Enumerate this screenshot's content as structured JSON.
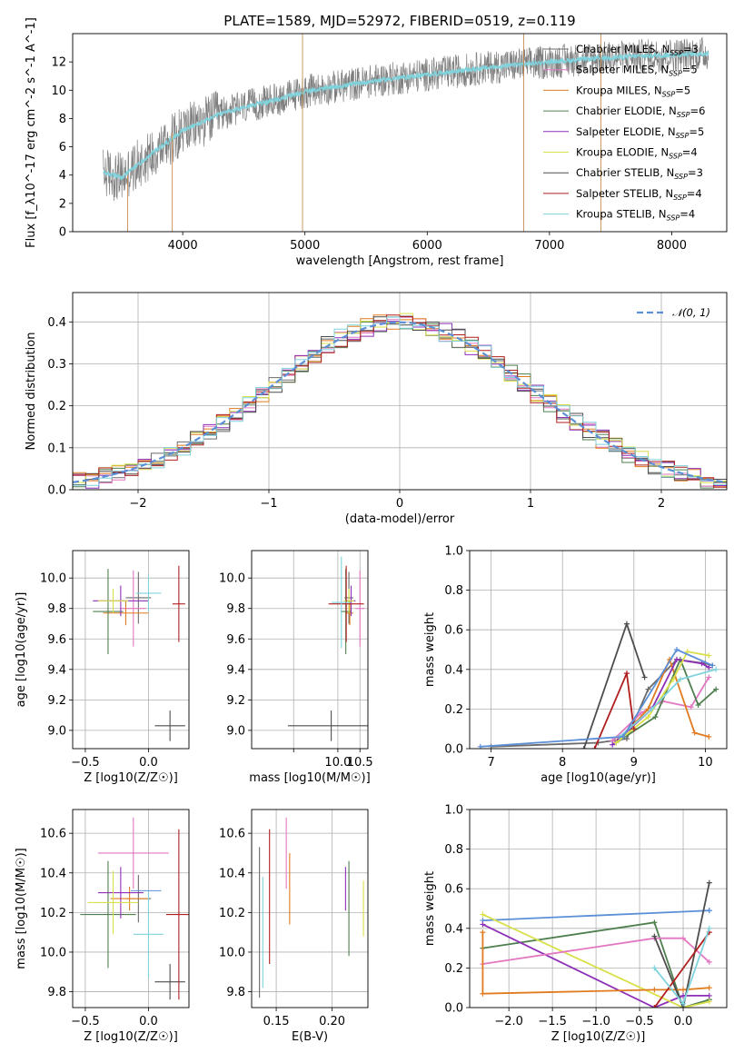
{
  "title": "PLATE=1589, MJD=52972, FIBERID=0519, z=0.119",
  "colors": {
    "Chabrier MILES": "#6b6b6b",
    "Salpeter MILES": "#e377c2",
    "Kroupa MILES": "#e07b1f",
    "Chabrier ELODIE": "#4f7f4f",
    "Salpeter ELODIE": "#8e2fb8",
    "Kroupa ELODIE": "#d9e04a",
    "Chabrier STELIB": "#4d4d4d",
    "Salpeter STELIB": "#b01e1e",
    "Kroupa STELIB": "#7fd3dd",
    "normal_curve": "#5b8fd6"
  },
  "legend_entries": [
    {
      "name": "Chabrier MILES",
      "nssp": "3"
    },
    {
      "name": "Salpeter MILES",
      "nssp": "5"
    },
    {
      "name": "Kroupa MILES",
      "nssp": "5"
    },
    {
      "name": "Chabrier ELODIE",
      "nssp": "6"
    },
    {
      "name": "Salpeter ELODIE",
      "nssp": "5"
    },
    {
      "name": "Kroupa ELODIE",
      "nssp": "4"
    },
    {
      "name": "Chabrier STELIB",
      "nssp": "3"
    },
    {
      "name": "Salpeter STELIB",
      "nssp": "4"
    },
    {
      "name": "Kroupa STELIB",
      "nssp": "4"
    }
  ],
  "chart_data": [
    {
      "id": "spectrum",
      "type": "line",
      "xlabel": "wavelength [Angstrom, rest frame]",
      "ylabel": "Flux [f_λ10^-17 erg cm^-2 s^-1 A^-1]",
      "xlim": [
        3100,
        8450
      ],
      "ylim": [
        0,
        14
      ],
      "xticks": [
        4000,
        5000,
        6000,
        7000,
        8000
      ],
      "yticks": [
        0,
        2,
        4,
        6,
        8,
        10,
        12
      ],
      "grid": false,
      "legend": "top-right",
      "data_envelope": {
        "x": [
          3350,
          3500,
          3700,
          3900,
          4000,
          4100,
          4300,
          4500,
          4800,
          5000,
          5300,
          5600,
          6000,
          6500,
          7000,
          7300,
          7500,
          7700,
          8000,
          8300
        ],
        "y": [
          4.2,
          3.8,
          5.2,
          6.5,
          7.2,
          7.5,
          8.3,
          8.8,
          9.4,
          9.9,
          10.3,
          10.7,
          11.1,
          11.6,
          12.0,
          12.2,
          12.3,
          12.4,
          12.5,
          12.6
        ]
      }
    },
    {
      "id": "residuals",
      "type": "line",
      "xlabel": "(data-model)/error",
      "ylabel": "Normed distribution",
      "xlim": [
        -2.5,
        2.5
      ],
      "ylim": [
        0,
        0.47
      ],
      "xticks": [
        -2,
        -1,
        0,
        1,
        2
      ],
      "yticks": [
        0.0,
        0.1,
        0.2,
        0.3,
        0.4
      ],
      "grid": true,
      "legend": "top-right",
      "normal_label": "𝒩(0, 1)",
      "hist_bin_width": 0.1
    },
    {
      "id": "age_vs_Z",
      "type": "scatter",
      "xlabel": "Z [log10(Z/Z☉)]",
      "ylabel": "age  [log10(age/yr)]",
      "xlim": [
        -0.6,
        0.32
      ],
      "ylim": [
        8.88,
        10.18
      ],
      "xticks": [
        -0.5,
        0.0
      ],
      "yticks": [
        9.0,
        9.2,
        9.4,
        9.6,
        9.8,
        10.0
      ],
      "grid": true,
      "points": [
        {
          "series": "Chabrier MILES",
          "x": -0.08,
          "y": 9.87,
          "xerr": 0.1,
          "yerr": 0.17
        },
        {
          "series": "Salpeter MILES",
          "x": -0.12,
          "y": 9.8,
          "xerr": 0.1,
          "yerr": 0.25
        },
        {
          "series": "Kroupa MILES",
          "x": -0.18,
          "y": 9.77,
          "xerr": 0.18,
          "yerr": 0.08
        },
        {
          "series": "Chabrier ELODIE",
          "x": -0.32,
          "y": 9.78,
          "xerr": 0.12,
          "yerr": 0.28
        },
        {
          "series": "Salpeter ELODIE",
          "x": -0.22,
          "y": 9.85,
          "xerr": 0.22,
          "yerr": 0.1
        },
        {
          "series": "Kroupa ELODIE",
          "x": -0.28,
          "y": 9.85,
          "xerr": 0.12,
          "yerr": 0.08
        },
        {
          "series": "Chabrier STELIB",
          "x": 0.17,
          "y": 9.03,
          "xerr": 0.12,
          "yerr": 0.1
        },
        {
          "series": "Salpeter STELIB",
          "x": 0.24,
          "y": 9.83,
          "xerr": 0.05,
          "yerr": 0.25
        },
        {
          "series": "Kroupa STELIB",
          "x": 0.0,
          "y": 9.9,
          "xerr": 0.1,
          "yerr": 0.12
        }
      ]
    },
    {
      "id": "age_vs_mass",
      "type": "scatter",
      "xlabel": "mass [log10(M/M☉)]",
      "ylabel": "",
      "xlim": [
        8.05,
        10.68
      ],
      "ylim": [
        8.88,
        10.18
      ],
      "xticks": [
        9.0,
        10.0,
        10.5
      ],
      "xtick_labels": [
        "",
        "10.0",
        "10.5"
      ],
      "yticks": [
        9.0,
        9.2,
        9.4,
        9.6,
        9.8,
        10.0
      ],
      "grid": true,
      "points": [
        {
          "series": "Chabrier MILES",
          "x": 10.25,
          "y": 9.87,
          "xerr": 0.1,
          "yerr": 0.17
        },
        {
          "series": "Salpeter MILES",
          "x": 10.5,
          "y": 9.8,
          "xerr": 0.1,
          "yerr": 0.25
        },
        {
          "series": "Kroupa MILES",
          "x": 10.27,
          "y": 9.77,
          "xerr": 0.08,
          "yerr": 0.08
        },
        {
          "series": "Chabrier ELODIE",
          "x": 10.18,
          "y": 9.78,
          "xerr": 0.12,
          "yerr": 0.28
        },
        {
          "series": "Salpeter ELODIE",
          "x": 10.3,
          "y": 9.85,
          "xerr": 0.1,
          "yerr": 0.1
        },
        {
          "series": "Kroupa ELODIE",
          "x": 10.25,
          "y": 9.85,
          "xerr": 0.12,
          "yerr": 0.08
        },
        {
          "series": "Chabrier STELIB",
          "x": 9.85,
          "y": 9.03,
          "xerr": 0.98,
          "yerr": 0.1
        },
        {
          "series": "Salpeter STELIB",
          "x": 10.19,
          "y": 9.83,
          "xerr": 0.4,
          "yerr": 0.25
        },
        {
          "series": "Kroupa STELIB",
          "x": 10.08,
          "y": 9.84,
          "xerr": 0.22,
          "yerr": 0.3
        }
      ]
    },
    {
      "id": "weight_vs_age",
      "type": "line",
      "xlabel": "age  [log10(age/yr)]",
      "ylabel": "mass weight",
      "xlim": [
        6.7,
        10.3
      ],
      "ylim": [
        0,
        1
      ],
      "xticks": [
        7,
        8,
        9,
        10
      ],
      "yticks": [
        0.0,
        0.2,
        0.4,
        0.6,
        0.8,
        1.0
      ],
      "grid": true,
      "series": [
        {
          "name": "Chabrier MILES",
          "x": [
            7.0,
            8.5,
            8.9,
            9.2,
            9.6,
            10.0,
            10.1
          ],
          "y": [
            0.01,
            0.03,
            0.05,
            0.3,
            0.45,
            0.43,
            0.42
          ]
        },
        {
          "name": "Salpeter MILES",
          "x": [
            8.7,
            9.1,
            9.4,
            9.8,
            10.05
          ],
          "y": [
            0.04,
            0.18,
            0.24,
            0.21,
            0.36
          ]
        },
        {
          "name": "Kroupa MILES",
          "x": [
            8.8,
            9.2,
            9.5,
            9.85,
            10.05
          ],
          "y": [
            0.05,
            0.2,
            0.45,
            0.08,
            0.06
          ]
        },
        {
          "name": "Chabrier ELODIE",
          "x": [
            8.75,
            9.3,
            9.65,
            9.9,
            10.15
          ],
          "y": [
            0.03,
            0.16,
            0.45,
            0.22,
            0.3
          ]
        },
        {
          "name": "Salpeter ELODIE",
          "x": [
            8.7,
            9.25,
            9.6,
            9.95,
            10.05
          ],
          "y": [
            0.02,
            0.2,
            0.45,
            0.43,
            0.41
          ]
        },
        {
          "name": "Kroupa ELODIE",
          "x": [
            8.75,
            9.2,
            9.55,
            9.75,
            10.05
          ],
          "y": [
            0.03,
            0.16,
            0.35,
            0.49,
            0.47
          ]
        },
        {
          "name": "Chabrier STELIB",
          "x": [
            8.3,
            8.9,
            9.15
          ],
          "y": [
            0.0,
            0.63,
            0.36
          ]
        },
        {
          "name": "Salpeter STELIB",
          "x": [
            8.45,
            8.9,
            9.0
          ],
          "y": [
            0.0,
            0.38,
            0.1
          ]
        },
        {
          "name": "Kroupa STELIB",
          "x": [
            8.8,
            9.25,
            9.65,
            10.15
          ],
          "y": [
            0.06,
            0.2,
            0.35,
            0.4
          ]
        },
        {
          "name": "Kroupa STELIB blue",
          "x": [
            6.85,
            8.85,
            9.6,
            10.1
          ],
          "y": [
            0.01,
            0.06,
            0.5,
            0.42
          ]
        }
      ]
    },
    {
      "id": "mass_vs_Z",
      "type": "scatter",
      "xlabel": "Z [log10(Z/Z☉)]",
      "ylabel": "mass [log10(M/M☉)]",
      "xlim": [
        -0.6,
        0.32
      ],
      "ylim": [
        9.72,
        10.72
      ],
      "xticks": [
        -0.5,
        0.0
      ],
      "yticks": [
        9.8,
        10.0,
        10.2,
        10.4,
        10.6
      ],
      "grid": true,
      "points": [
        {
          "series": "Chabrier MILES",
          "x": -0.08,
          "y": 10.27,
          "xerr": 0.1,
          "yerr": 0.12
        },
        {
          "series": "Salpeter MILES",
          "x": -0.12,
          "y": 10.5,
          "xerr": 0.28,
          "yerr": 0.18
        },
        {
          "series": "Kroupa MILES",
          "x": -0.15,
          "y": 10.27,
          "xerr": 0.15,
          "yerr": 0.06
        },
        {
          "series": "Chabrier ELODIE",
          "x": -0.32,
          "y": 10.19,
          "xerr": 0.22,
          "yerr": 0.27
        },
        {
          "series": "Salpeter ELODIE",
          "x": -0.22,
          "y": 10.3,
          "xerr": 0.18,
          "yerr": 0.13
        },
        {
          "series": "Kroupa ELODIE",
          "x": -0.28,
          "y": 10.25,
          "xerr": 0.2,
          "yerr": 0.16
        },
        {
          "series": "Chabrier STELIB",
          "x": 0.17,
          "y": 9.85,
          "xerr": 0.12,
          "yerr": 0.09
        },
        {
          "series": "Salpeter STELIB",
          "x": 0.24,
          "y": 10.19,
          "xerr": 0.1,
          "yerr": 0.43
        },
        {
          "series": "Kroupa STELIB",
          "x": 0.0,
          "y": 10.09,
          "xerr": 0.12,
          "yerr": 0.22
        },
        {
          "series": "Kroupa STELIB blue",
          "x": -0.02,
          "y": 10.31,
          "xerr": 0.12,
          "yerr": 0.0
        }
      ]
    },
    {
      "id": "mass_vs_EBV",
      "type": "scatter",
      "xlabel": "E(B-V)",
      "ylabel": "",
      "xlim": [
        0.128,
        0.232
      ],
      "ylim": [
        9.72,
        10.72
      ],
      "xticks": [
        0.15,
        0.2
      ],
      "yticks": [
        9.8,
        10.0,
        10.2,
        10.4,
        10.6
      ],
      "grid": true,
      "points": [
        {
          "series": "Chabrier MILES",
          "x": 0.135,
          "y": 10.15,
          "yerr": 0.38
        },
        {
          "series": "Kroupa STELIB",
          "x": 0.138,
          "y": 10.1,
          "yerr": 0.28
        },
        {
          "series": "Salpeter STELIB",
          "x": 0.144,
          "y": 10.28,
          "yerr": 0.34
        },
        {
          "series": "Salpeter MILES",
          "x": 0.159,
          "y": 10.5,
          "yerr": 0.18
        },
        {
          "series": "Kroupa MILES",
          "x": 0.162,
          "y": 10.32,
          "yerr": 0.18
        },
        {
          "series": "Salpeter ELODIE",
          "x": 0.212,
          "y": 10.32,
          "yerr": 0.11
        },
        {
          "series": "Chabrier ELODIE",
          "x": 0.215,
          "y": 10.22,
          "yerr": 0.24
        },
        {
          "series": "Kroupa ELODIE",
          "x": 0.228,
          "y": 10.22,
          "yerr": 0.14
        }
      ]
    },
    {
      "id": "weight_vs_Z",
      "type": "line",
      "xlabel": "Z [log10(Z/Z☉)]",
      "ylabel": "mass weight",
      "xlim": [
        -2.45,
        0.5
      ],
      "ylim": [
        0,
        1
      ],
      "xticks": [
        -2.0,
        -1.5,
        -1.0,
        -0.5,
        0.0
      ],
      "yticks": [
        0.0,
        0.2,
        0.4,
        0.6,
        0.8,
        1.0
      ],
      "grid": true,
      "series": [
        {
          "name": "Kroupa STELIB blue",
          "x": [
            -2.3,
            0.3,
            0.3
          ],
          "y": [
            0.44,
            0.49,
            0.49
          ]
        },
        {
          "name": "Chabrier ELODIE",
          "x": [
            -2.3,
            -0.33,
            0.0,
            0.3
          ],
          "y": [
            0.3,
            0.43,
            0.0,
            0.04
          ]
        },
        {
          "name": "Salpeter ELODIE",
          "x": [
            -2.3,
            -0.33,
            0.0,
            0.3
          ],
          "y": [
            0.42,
            0.0,
            0.06,
            0.06
          ]
        },
        {
          "name": "Kroupa ELODIE",
          "x": [
            -2.3,
            0.0,
            0.3
          ],
          "y": [
            0.47,
            0.0,
            0.03
          ]
        },
        {
          "name": "Salpeter MILES",
          "x": [
            -2.3,
            -0.33,
            0.0,
            0.3
          ],
          "y": [
            0.22,
            0.35,
            0.35,
            0.23
          ]
        },
        {
          "name": "Kroupa MILES",
          "x": [
            -2.3,
            -2.3,
            -0.33,
            0.0,
            0.3
          ],
          "y": [
            0.38,
            0.07,
            0.09,
            0.09,
            0.1
          ]
        },
        {
          "name": "Chabrier STELIB",
          "x": [
            -0.33,
            0.0,
            0.3
          ],
          "y": [
            0.36,
            0.0,
            0.63
          ]
        },
        {
          "name": "Salpeter STELIB",
          "x": [
            -0.33,
            0.3
          ],
          "y": [
            0.0,
            0.38
          ]
        },
        {
          "name": "Kroupa STELIB",
          "x": [
            -0.33,
            0.0,
            0.3
          ],
          "y": [
            0.2,
            0.02,
            0.4
          ]
        }
      ]
    }
  ]
}
